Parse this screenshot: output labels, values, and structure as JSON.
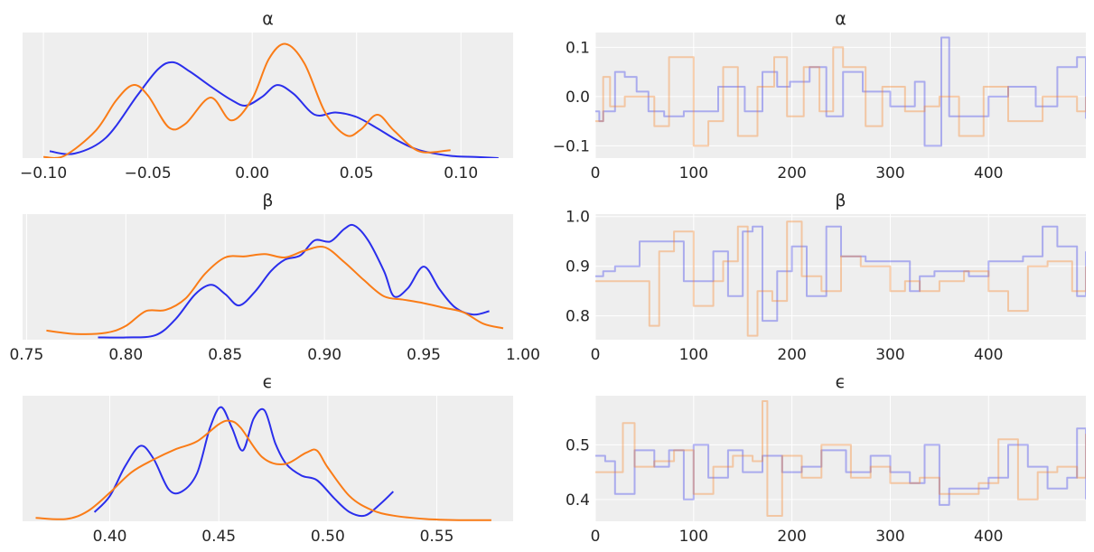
{
  "chart_data": [
    {
      "type": "line",
      "title": "α",
      "xlim": [
        -0.11,
        0.125
      ],
      "xticks": [
        -0.1,
        -0.05,
        0.0,
        0.05,
        0.1
      ],
      "xtick_labels": [
        "−0.10",
        "−0.05",
        "0.00",
        "0.05",
        "0.10"
      ],
      "ylim": [
        0,
        1.1
      ],
      "yticks": [],
      "ytick_labels": [],
      "grid": true,
      "series": [
        {
          "color": "#2a2eec",
          "opacity": 1,
          "x": [
            -0.097,
            -0.085,
            -0.07,
            -0.055,
            -0.045,
            -0.038,
            -0.03,
            -0.02,
            -0.01,
            -0.003,
            0.005,
            0.012,
            0.02,
            0.03,
            0.04,
            0.05,
            0.06,
            0.07,
            0.08,
            0.095,
            0.107,
            0.118
          ],
          "y": [
            0.06,
            0.04,
            0.18,
            0.55,
            0.78,
            0.84,
            0.76,
            0.63,
            0.51,
            0.46,
            0.54,
            0.64,
            0.56,
            0.38,
            0.4,
            0.36,
            0.26,
            0.15,
            0.07,
            0.02,
            0.01,
            0.0
          ]
        },
        {
          "color": "#fa7c17",
          "opacity": 1,
          "x": [
            -0.1,
            -0.09,
            -0.075,
            -0.065,
            -0.057,
            -0.05,
            -0.04,
            -0.032,
            -0.02,
            -0.01,
            0.0,
            0.008,
            0.016,
            0.025,
            0.035,
            0.045,
            0.052,
            0.06,
            0.068,
            0.08,
            0.095
          ],
          "y": [
            0.01,
            0.02,
            0.24,
            0.51,
            0.64,
            0.55,
            0.27,
            0.3,
            0.53,
            0.33,
            0.52,
            0.87,
            1.0,
            0.83,
            0.4,
            0.2,
            0.25,
            0.38,
            0.24,
            0.06,
            0.07
          ]
        }
      ]
    },
    {
      "type": "line",
      "title": "α",
      "xlim": [
        0,
        499
      ],
      "xticks": [
        0,
        100,
        200,
        300,
        400
      ],
      "xtick_labels": [
        "0",
        "100",
        "200",
        "300",
        "400"
      ],
      "ylim": [
        -0.125,
        0.13
      ],
      "yticks": [
        -0.1,
        0.0,
        0.1
      ],
      "ytick_labels": [
        "−0.1",
        "0.0",
        "0.1"
      ],
      "grid": true,
      "series": [
        {
          "color": "#2a2eec",
          "opacity": 0.35,
          "x": [
            0,
            4,
            8,
            20,
            30,
            42,
            54,
            70,
            90,
            108,
            125,
            152,
            170,
            185,
            198,
            218,
            235,
            252,
            272,
            300,
            315,
            325,
            335,
            352,
            360,
            380,
            400,
            420,
            448,
            470,
            490,
            499
          ],
          "y": [
            -0.03,
            -0.05,
            -0.03,
            0.05,
            0.04,
            0.01,
            -0.03,
            -0.04,
            -0.03,
            -0.03,
            0.02,
            -0.03,
            0.05,
            0.02,
            0.03,
            0.06,
            -0.04,
            0.05,
            0.01,
            -0.02,
            -0.02,
            0.03,
            -0.1,
            0.12,
            -0.04,
            -0.04,
            0.0,
            0.02,
            -0.02,
            0.06,
            0.08,
            -0.045
          ]
        },
        {
          "color": "#fa7c17",
          "opacity": 0.35,
          "x": [
            0,
            8,
            15,
            30,
            60,
            75,
            100,
            115,
            130,
            145,
            165,
            182,
            195,
            212,
            228,
            242,
            252,
            275,
            292,
            315,
            335,
            350,
            370,
            395,
            420,
            455,
            490,
            499
          ],
          "y": [
            -0.05,
            0.04,
            -0.02,
            0.0,
            -0.06,
            0.08,
            -0.1,
            -0.05,
            0.06,
            -0.08,
            0.02,
            0.08,
            -0.04,
            0.06,
            -0.03,
            0.1,
            0.06,
            -0.06,
            0.02,
            -0.03,
            -0.02,
            0.0,
            -0.08,
            0.02,
            -0.05,
            0.0,
            -0.03,
            0.0
          ]
        }
      ]
    },
    {
      "type": "line",
      "title": "β",
      "xlim": [
        0.748,
        0.995
      ],
      "xticks": [
        0.75,
        0.8,
        0.85,
        0.9,
        0.95,
        1.0
      ],
      "xtick_labels": [
        "0.75",
        "0.80",
        "0.85",
        "0.90",
        "0.95",
        "1.00"
      ],
      "ylim": [
        0,
        1.1
      ],
      "yticks": [],
      "ytick_labels": [],
      "grid": true,
      "series": [
        {
          "color": "#2a2eec",
          "opacity": 1,
          "x": [
            0.786,
            0.8,
            0.815,
            0.825,
            0.835,
            0.843,
            0.85,
            0.857,
            0.865,
            0.873,
            0.88,
            0.888,
            0.895,
            0.903,
            0.91,
            0.915,
            0.922,
            0.93,
            0.935,
            0.942,
            0.95,
            0.958,
            0.966,
            0.975,
            0.983
          ],
          "y": [
            0.02,
            0.02,
            0.04,
            0.18,
            0.4,
            0.48,
            0.4,
            0.3,
            0.42,
            0.6,
            0.7,
            0.74,
            0.87,
            0.86,
            0.97,
            1.0,
            0.87,
            0.6,
            0.38,
            0.45,
            0.64,
            0.44,
            0.28,
            0.22,
            0.25
          ]
        },
        {
          "color": "#fa7c17",
          "opacity": 1,
          "x": [
            0.76,
            0.775,
            0.79,
            0.8,
            0.81,
            0.82,
            0.83,
            0.84,
            0.85,
            0.86,
            0.87,
            0.88,
            0.89,
            0.9,
            0.91,
            0.92,
            0.93,
            0.94,
            0.95,
            0.96,
            0.97,
            0.98,
            0.99
          ],
          "y": [
            0.08,
            0.05,
            0.06,
            0.12,
            0.25,
            0.26,
            0.36,
            0.58,
            0.72,
            0.73,
            0.75,
            0.72,
            0.78,
            0.81,
            0.68,
            0.52,
            0.38,
            0.35,
            0.32,
            0.28,
            0.24,
            0.14,
            0.1
          ]
        }
      ]
    },
    {
      "type": "line",
      "title": "β",
      "xlim": [
        0,
        499
      ],
      "xticks": [
        0,
        100,
        200,
        300,
        400
      ],
      "xtick_labels": [
        "0",
        "100",
        "200",
        "300",
        "400"
      ],
      "ylim": [
        0.752,
        1.005
      ],
      "yticks": [
        0.8,
        0.9,
        1.0
      ],
      "ytick_labels": [
        "0.8",
        "0.9",
        "1.0"
      ],
      "grid": true,
      "series": [
        {
          "color": "#2a2eec",
          "opacity": 0.35,
          "x": [
            0,
            8,
            20,
            45,
            75,
            90,
            100,
            110,
            120,
            135,
            150,
            160,
            170,
            185,
            200,
            215,
            235,
            250,
            275,
            300,
            320,
            330,
            345,
            380,
            400,
            410,
            435,
            455,
            470,
            490,
            499
          ],
          "y": [
            0.88,
            0.89,
            0.9,
            0.95,
            0.95,
            0.87,
            0.87,
            0.87,
            0.93,
            0.84,
            0.97,
            0.98,
            0.79,
            0.89,
            0.94,
            0.84,
            0.98,
            0.92,
            0.91,
            0.91,
            0.85,
            0.88,
            0.89,
            0.88,
            0.91,
            0.91,
            0.92,
            0.98,
            0.94,
            0.84,
            0.93
          ]
        },
        {
          "color": "#fa7c17",
          "opacity": 0.35,
          "x": [
            0,
            40,
            55,
            65,
            80,
            100,
            120,
            130,
            145,
            155,
            165,
            180,
            195,
            210,
            230,
            250,
            270,
            300,
            315,
            330,
            350,
            375,
            400,
            420,
            440,
            460,
            485,
            499
          ],
          "y": [
            0.87,
            0.87,
            0.78,
            0.93,
            0.97,
            0.82,
            0.87,
            0.91,
            0.98,
            0.76,
            0.85,
            0.83,
            0.99,
            0.88,
            0.85,
            0.92,
            0.9,
            0.85,
            0.87,
            0.85,
            0.87,
            0.89,
            0.85,
            0.81,
            0.9,
            0.91,
            0.85,
            0.9
          ]
        }
      ]
    },
    {
      "type": "line",
      "title": "ϵ",
      "xlim": [
        0.36,
        0.585
      ],
      "xticks": [
        0.4,
        0.45,
        0.5,
        0.55
      ],
      "xtick_labels": [
        "0.40",
        "0.45",
        "0.50",
        "0.55"
      ],
      "ylim": [
        0,
        1.1
      ],
      "yticks": [],
      "ytick_labels": [],
      "grid": true,
      "series": [
        {
          "color": "#2a2eec",
          "opacity": 1,
          "x": [
            0.393,
            0.4,
            0.407,
            0.414,
            0.42,
            0.427,
            0.433,
            0.44,
            0.446,
            0.451,
            0.456,
            0.461,
            0.466,
            0.471,
            0.476,
            0.481,
            0.488,
            0.495,
            0.503,
            0.51,
            0.517,
            0.524,
            0.53
          ],
          "y": [
            0.08,
            0.22,
            0.48,
            0.66,
            0.55,
            0.28,
            0.26,
            0.42,
            0.82,
            1.0,
            0.82,
            0.62,
            0.9,
            0.97,
            0.68,
            0.5,
            0.4,
            0.36,
            0.2,
            0.08,
            0.05,
            0.15,
            0.26
          ]
        },
        {
          "color": "#fa7c17",
          "opacity": 1,
          "x": [
            0.366,
            0.38,
            0.39,
            0.4,
            0.41,
            0.42,
            0.43,
            0.44,
            0.45,
            0.455,
            0.46,
            0.47,
            0.48,
            0.49,
            0.495,
            0.5,
            0.51,
            0.52,
            0.53,
            0.545,
            0.56,
            0.575
          ],
          "y": [
            0.03,
            0.02,
            0.09,
            0.25,
            0.43,
            0.54,
            0.63,
            0.7,
            0.85,
            0.88,
            0.82,
            0.56,
            0.5,
            0.6,
            0.62,
            0.47,
            0.22,
            0.1,
            0.05,
            0.02,
            0.01,
            0.01
          ]
        }
      ]
    },
    {
      "type": "line",
      "title": "ϵ",
      "xlim": [
        0,
        499
      ],
      "xticks": [
        0,
        100,
        200,
        300,
        400
      ],
      "xtick_labels": [
        "0",
        "100",
        "200",
        "300",
        "400"
      ],
      "ylim": [
        0.36,
        0.59
      ],
      "yticks": [
        0.4,
        0.5
      ],
      "ytick_labels": [
        "0.4",
        "0.5"
      ],
      "grid": true,
      "series": [
        {
          "color": "#2a2eec",
          "opacity": 0.35,
          "x": [
            0,
            10,
            20,
            40,
            60,
            75,
            90,
            100,
            115,
            135,
            150,
            170,
            190,
            210,
            230,
            255,
            280,
            300,
            320,
            335,
            350,
            360,
            380,
            400,
            420,
            440,
            460,
            480,
            490,
            499
          ],
          "y": [
            0.48,
            0.47,
            0.41,
            0.49,
            0.46,
            0.49,
            0.4,
            0.5,
            0.44,
            0.49,
            0.45,
            0.48,
            0.45,
            0.46,
            0.49,
            0.45,
            0.48,
            0.45,
            0.43,
            0.5,
            0.39,
            0.42,
            0.42,
            0.44,
            0.5,
            0.46,
            0.42,
            0.44,
            0.53,
            0.4
          ]
        },
        {
          "color": "#fa7c17",
          "opacity": 0.35,
          "x": [
            0,
            20,
            28,
            40,
            60,
            80,
            100,
            120,
            140,
            160,
            170,
            175,
            190,
            210,
            230,
            260,
            280,
            300,
            330,
            350,
            370,
            390,
            410,
            430,
            450,
            470,
            490,
            499
          ],
          "y": [
            0.45,
            0.45,
            0.54,
            0.46,
            0.47,
            0.49,
            0.41,
            0.46,
            0.48,
            0.47,
            0.58,
            0.37,
            0.48,
            0.44,
            0.5,
            0.44,
            0.46,
            0.43,
            0.44,
            0.41,
            0.41,
            0.43,
            0.51,
            0.4,
            0.45,
            0.46,
            0.44,
            0.52
          ]
        }
      ]
    }
  ]
}
